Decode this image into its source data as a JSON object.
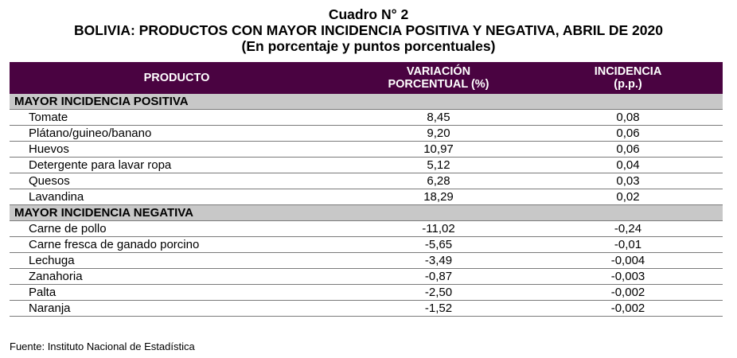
{
  "title": {
    "line1": "Cuadro N° 2",
    "line2": "BOLIVIA: PRODUCTOS CON MAYOR INCIDENCIA POSITIVA Y NEGATIVA, ABRIL DE 2020",
    "line3": "(En porcentaje y puntos porcentuales)"
  },
  "header": {
    "producto": "PRODUCTO",
    "variacion_line1": "VARIACIÓN",
    "variacion_line2": "PORCENTUAL (%)",
    "incidencia_line1": "INCIDENCIA",
    "incidencia_line2": "(p.p.)"
  },
  "positive": {
    "label": "MAYOR INCIDENCIA POSITIVA",
    "rows": [
      {
        "producto": "Tomate",
        "variacion": "8,45",
        "incidencia": "0,08"
      },
      {
        "producto": "Plátano/guineo/banano",
        "variacion": "9,20",
        "incidencia": "0,06"
      },
      {
        "producto": "Huevos",
        "variacion": "10,97",
        "incidencia": "0,06"
      },
      {
        "producto": "Detergente para lavar ropa",
        "variacion": "5,12",
        "incidencia": "0,04"
      },
      {
        "producto": "Quesos",
        "variacion": "6,28",
        "incidencia": "0,03"
      },
      {
        "producto": "Lavandina",
        "variacion": "18,29",
        "incidencia": "0,02"
      }
    ]
  },
  "negative": {
    "label": "MAYOR INCIDENCIA NEGATIVA",
    "rows": [
      {
        "producto": "Carne de pollo",
        "variacion": "-11,02",
        "incidencia": "-0,24"
      },
      {
        "producto": "Carne fresca de ganado porcino",
        "variacion": "-5,65",
        "incidencia": "-0,01"
      },
      {
        "producto": "Lechuga",
        "variacion": "-3,49",
        "incidencia": "-0,004"
      },
      {
        "producto": "Zanahoria",
        "variacion": "-0,87",
        "incidencia": "-0,003"
      },
      {
        "producto": "Palta",
        "variacion": "-2,50",
        "incidencia": "-0,002"
      },
      {
        "producto": "Naranja",
        "variacion": "-1,52",
        "incidencia": "-0,002"
      }
    ]
  },
  "source": "Fuente: Instituto Nacional de Estadística",
  "colors": {
    "header_bg": "#4a0341",
    "section_bg": "#c8c8c8"
  }
}
